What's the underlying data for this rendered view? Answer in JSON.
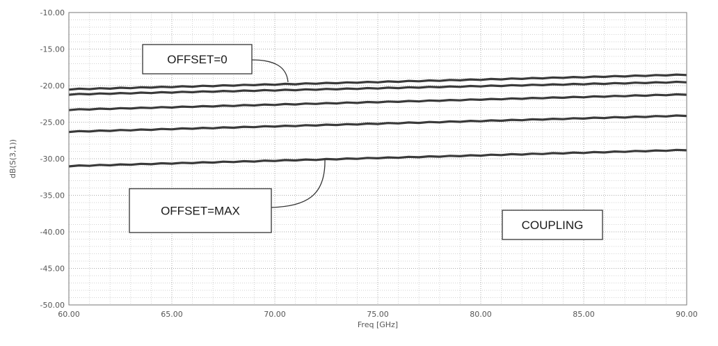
{
  "chart_data": {
    "type": "line",
    "title": "",
    "xlabel": "Freq [GHz]",
    "ylabel": "dB(S(3,1))",
    "xlim": [
      60,
      90
    ],
    "ylim": [
      -50,
      -10
    ],
    "xticks": [
      60,
      65,
      70,
      75,
      80,
      85,
      90
    ],
    "yticks": [
      -10,
      -15,
      -20,
      -25,
      -30,
      -35,
      -40,
      -45,
      -50
    ],
    "x_tick_labels": [
      "60.00",
      "65.00",
      "70.00",
      "75.00",
      "80.00",
      "85.00",
      "90.00"
    ],
    "y_tick_labels": [
      "-10.00",
      "-15.00",
      "-20.00",
      "-25.00",
      "-30.00",
      "-35.00",
      "-40.00",
      "-45.00",
      "-50.00"
    ],
    "grid": true,
    "series": [
      {
        "x": [
          60,
          90
        ],
        "values": [
          -20.5,
          -18.5
        ]
      },
      {
        "x": [
          60,
          90
        ],
        "values": [
          -21.2,
          -19.5
        ]
      },
      {
        "x": [
          60,
          90
        ],
        "values": [
          -23.3,
          -21.2
        ]
      },
      {
        "x": [
          60,
          90
        ],
        "values": [
          -26.3,
          -24.1
        ]
      },
      {
        "x": [
          60,
          90
        ],
        "values": [
          -31.0,
          -28.8
        ]
      }
    ],
    "annotations": [
      {
        "text": "OFFSET=0"
      },
      {
        "text": "OFFSET=MAX"
      },
      {
        "text": "COUPLING"
      }
    ]
  }
}
